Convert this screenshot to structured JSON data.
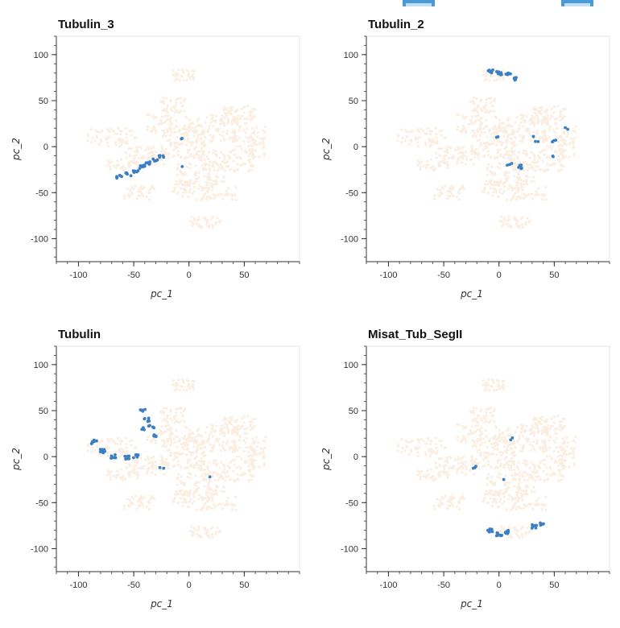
{
  "chart_data": [
    {
      "type": "scatter",
      "title": "Tubulin_3",
      "xlabel": "pc_1",
      "ylabel": "pc_2",
      "xlim": [
        -120,
        100
      ],
      "ylim": [
        -125,
        120
      ],
      "xticks": [
        "-100",
        "-50",
        "0",
        "50"
      ],
      "yticks": [
        "100",
        "50",
        "0",
        "-50",
        "-100"
      ],
      "background_color": "#fbeee1",
      "highlight_color": "#3b7fc4",
      "highlight_clusters": [
        {
          "x": -63,
          "y": -33,
          "n": 6
        },
        {
          "x": -55,
          "y": -30,
          "n": 6
        },
        {
          "x": -48,
          "y": -27,
          "n": 7
        },
        {
          "x": -42,
          "y": -22,
          "n": 8
        },
        {
          "x": -37,
          "y": -18,
          "n": 8
        },
        {
          "x": -30,
          "y": -14,
          "n": 7
        },
        {
          "x": -25,
          "y": -10,
          "n": 5
        },
        {
          "x": -5,
          "y": 10,
          "n": 2
        },
        {
          "x": -8,
          "y": -20,
          "n": 1
        }
      ]
    },
    {
      "type": "scatter",
      "title": "Tubulin_2",
      "xlabel": "pc_1",
      "ylabel": "pc_2",
      "xlim": [
        -120,
        100
      ],
      "ylim": [
        -125,
        120
      ],
      "xticks": [
        "-100",
        "-50",
        "0",
        "50"
      ],
      "yticks": [
        "100",
        "50",
        "0",
        "-50",
        "-100"
      ],
      "background_color": "#fbeee1",
      "highlight_color": "#3b7fc4",
      "highlight_clusters": [
        {
          "x": -8,
          "y": 82,
          "n": 8
        },
        {
          "x": 0,
          "y": 80,
          "n": 7
        },
        {
          "x": 8,
          "y": 78,
          "n": 7
        },
        {
          "x": 16,
          "y": 74,
          "n": 6
        },
        {
          "x": 20,
          "y": -22,
          "n": 7
        },
        {
          "x": 10,
          "y": -20,
          "n": 3
        },
        {
          "x": 35,
          "y": 5,
          "n": 2
        },
        {
          "x": 50,
          "y": 5,
          "n": 3
        },
        {
          "x": 30,
          "y": 10,
          "n": 2
        },
        {
          "x": 0,
          "y": 10,
          "n": 2
        },
        {
          "x": 60,
          "y": 20,
          "n": 2
        },
        {
          "x": 48,
          "y": -12,
          "n": 2
        }
      ]
    },
    {
      "type": "scatter",
      "title": "Tubulin",
      "xlabel": "pc_1",
      "ylabel": "pc_2",
      "xlim": [
        -120,
        100
      ],
      "ylim": [
        -125,
        120
      ],
      "xticks": [
        "-100",
        "-50",
        "0",
        "50"
      ],
      "yticks": [
        "100",
        "50",
        "0",
        "-50",
        "-100"
      ],
      "background_color": "#fbeee1",
      "highlight_color": "#3b7fc4",
      "highlight_clusters": [
        {
          "x": -86,
          "y": 16,
          "n": 7
        },
        {
          "x": -78,
          "y": 6,
          "n": 7
        },
        {
          "x": -68,
          "y": 0,
          "n": 6
        },
        {
          "x": -56,
          "y": -1,
          "n": 6
        },
        {
          "x": -48,
          "y": 0,
          "n": 5
        },
        {
          "x": -42,
          "y": 50,
          "n": 5
        },
        {
          "x": -38,
          "y": 40,
          "n": 6
        },
        {
          "x": -34,
          "y": 32,
          "n": 5
        },
        {
          "x": -30,
          "y": 22,
          "n": 5
        },
        {
          "x": -42,
          "y": 30,
          "n": 3
        },
        {
          "x": -25,
          "y": -12,
          "n": 2
        },
        {
          "x": 20,
          "y": -22,
          "n": 1
        }
      ]
    },
    {
      "type": "scatter",
      "title": "Misat_Tub_SegII",
      "xlabel": "pc_1",
      "ylabel": "pc_2",
      "xlim": [
        -120,
        100
      ],
      "ylim": [
        -125,
        120
      ],
      "xticks": [
        "-100",
        "-50",
        "0",
        "50"
      ],
      "yticks": [
        "100",
        "50",
        "0",
        "-50",
        "-100"
      ],
      "background_color": "#fbeee1",
      "highlight_color": "#3b7fc4",
      "highlight_clusters": [
        {
          "x": -8,
          "y": -80,
          "n": 8
        },
        {
          "x": 0,
          "y": -84,
          "n": 8
        },
        {
          "x": 6,
          "y": -82,
          "n": 6
        },
        {
          "x": 32,
          "y": -76,
          "n": 6
        },
        {
          "x": 38,
          "y": -74,
          "n": 5
        },
        {
          "x": -22,
          "y": -12,
          "n": 3
        },
        {
          "x": 10,
          "y": 20,
          "n": 2
        },
        {
          "x": 4,
          "y": -25,
          "n": 1
        }
      ]
    }
  ]
}
